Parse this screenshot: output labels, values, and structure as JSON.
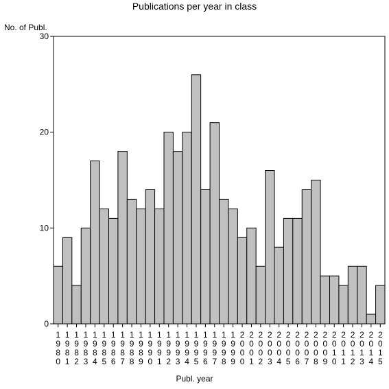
{
  "chart_data": {
    "type": "bar",
    "title": "Publications per year in class",
    "ylabel": "No. of Publ.",
    "xlabel": "Publ. year",
    "ylim": [
      0,
      30
    ],
    "yticks": [
      0,
      10,
      20,
      30
    ],
    "grid": false,
    "bar_color": "#c0c0c0",
    "categories": [
      "1980",
      "1981",
      "1982",
      "1983",
      "1984",
      "1985",
      "1986",
      "1987",
      "1988",
      "1989",
      "1990",
      "1991",
      "1992",
      "1993",
      "1994",
      "1995",
      "1996",
      "1997",
      "1998",
      "1999",
      "2000",
      "2001",
      "2002",
      "2003",
      "2004",
      "2005",
      "2006",
      "2007",
      "2008",
      "2009",
      "2010",
      "2011",
      "2012",
      "2013",
      "2014",
      "2015"
    ],
    "values": [
      6,
      9,
      4,
      10,
      17,
      12,
      11,
      18,
      13,
      12,
      14,
      12,
      20,
      18,
      20,
      26,
      14,
      21,
      13,
      12,
      9,
      10,
      6,
      16,
      8,
      11,
      11,
      14,
      15,
      5,
      5,
      4,
      6,
      6,
      1,
      4
    ]
  }
}
